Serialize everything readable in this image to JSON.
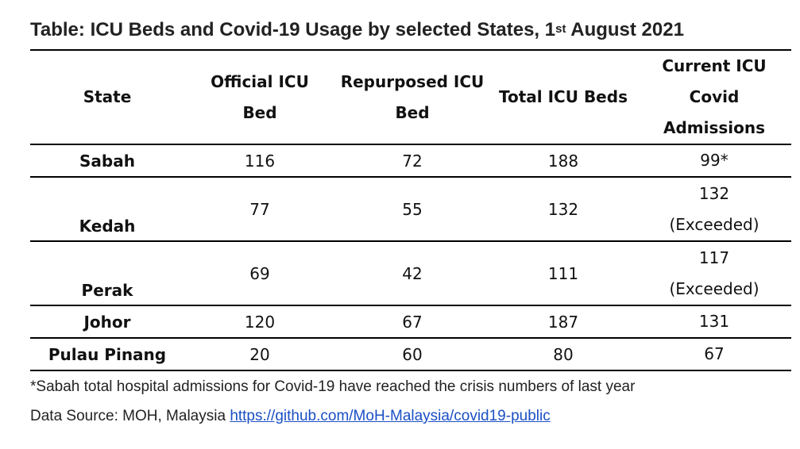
{
  "title": {
    "prefix": "Table: ICU Beds and Covid-19 Usage by selected States, 1",
    "superscript": "st",
    "suffix": " August 2021"
  },
  "table": {
    "headers": {
      "state": "State",
      "official_l1": "Official ICU",
      "official_l2": "Bed",
      "repurposed_l1": "Repurposed ICU",
      "repurposed_l2": "Bed",
      "total": "Total ICU Beds",
      "current_l1": "Current ICU",
      "current_l2": "Covid",
      "current_l3": "Admissions"
    },
    "rows": [
      {
        "state": "Sabah",
        "official": "116",
        "repurposed": "72",
        "total": "188",
        "admissions": "99*",
        "admissions_note": ""
      },
      {
        "state": "Kedah",
        "official": "77",
        "repurposed": "55",
        "total": "132",
        "admissions": "132",
        "admissions_note": "(Exceeded)"
      },
      {
        "state": "Perak",
        "official": "69",
        "repurposed": "42",
        "total": "111",
        "admissions": "117",
        "admissions_note": "(Exceeded)"
      },
      {
        "state": "Johor",
        "official": "120",
        "repurposed": "67",
        "total": "187",
        "admissions": "131",
        "admissions_note": ""
      },
      {
        "state": "Pulau Pinang",
        "official": "20",
        "repurposed": "60",
        "total": "80",
        "admissions": "67",
        "admissions_note": ""
      }
    ]
  },
  "footnote": "*Sabah total hospital admissions for Covid-19 have reached the crisis numbers of last year",
  "source": {
    "label": "Data Source: MOH, Malaysia ",
    "link_text": "https://github.com/MoH-Malaysia/covid19-public"
  }
}
